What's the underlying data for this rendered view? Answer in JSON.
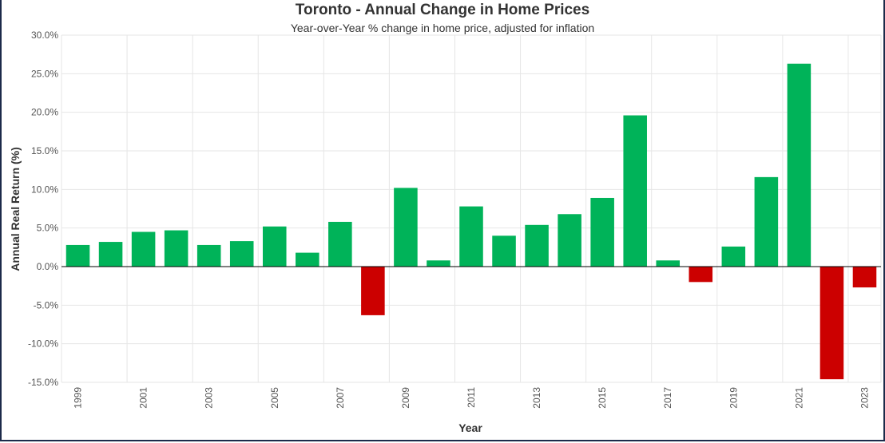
{
  "chart_data": {
    "type": "bar",
    "title": "Toronto - Annual Change in Home Prices",
    "subtitle": "Year-over-Year % change in home price, adjusted for inflation",
    "xlabel": "Year",
    "ylabel": "Annual Real Return (%)",
    "ylim": [
      -15,
      30
    ],
    "yticks": [
      30,
      25,
      20,
      15,
      10,
      5,
      0,
      -5,
      -10,
      -15
    ],
    "ytick_labels": [
      "30.0%",
      "25.0%",
      "20.0%",
      "15.0%",
      "10.0%",
      "5.0%",
      "0.0%",
      "-5.0%",
      "-10.0%",
      "-15.0%"
    ],
    "categories": [
      "1999",
      "2000",
      "2001",
      "2002",
      "2003",
      "2004",
      "2005",
      "2006",
      "2007",
      "2008",
      "2009",
      "2010",
      "2011",
      "2012",
      "2013",
      "2014",
      "2015",
      "2016",
      "2017",
      "2018",
      "2019",
      "2020",
      "2021",
      "2022",
      "2023"
    ],
    "xtick_labels": [
      "1999",
      "2001",
      "2003",
      "2005",
      "2007",
      "2009",
      "2011",
      "2013",
      "2015",
      "2017",
      "2019",
      "2021",
      "2023"
    ],
    "values": [
      2.8,
      3.2,
      4.5,
      4.7,
      2.8,
      3.3,
      5.2,
      1.8,
      5.8,
      -6.3,
      10.2,
      0.8,
      7.8,
      4.0,
      5.4,
      6.8,
      8.9,
      19.6,
      0.8,
      -2.0,
      2.6,
      11.6,
      26.3,
      -14.6,
      -2.7
    ],
    "grid": true,
    "legend": "none",
    "colors": {
      "positive": "#00b359",
      "negative": "#cc0000",
      "grid": "#e6e6e6",
      "zero_line": "#000000"
    }
  }
}
